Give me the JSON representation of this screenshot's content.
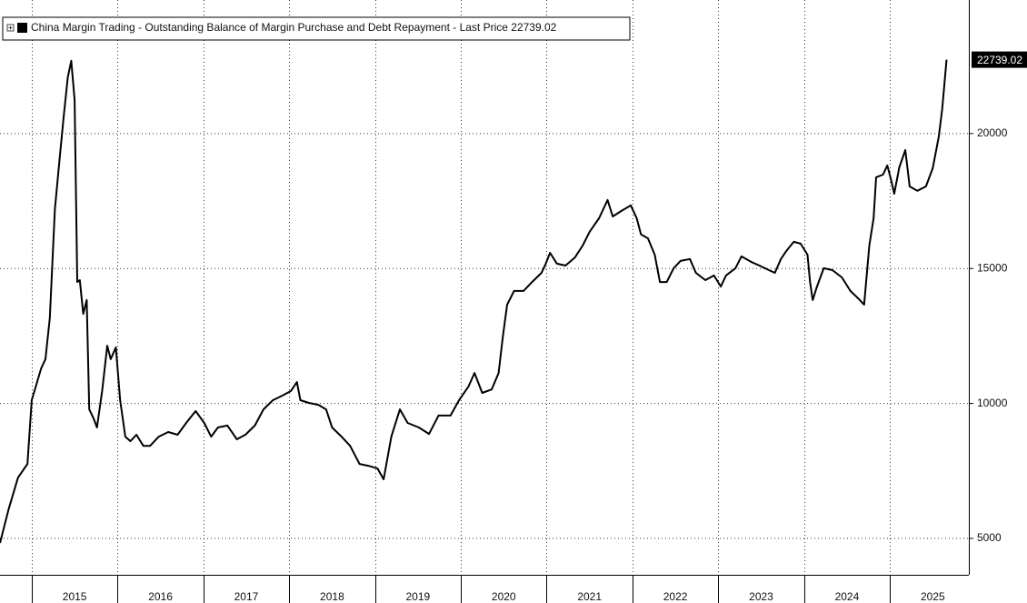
{
  "chart_data": {
    "type": "line",
    "series": [
      {
        "name": "China Margin Trading - Outstanding Balance of Margin Purchase and Debt Repayment - Last Price 22739.02",
        "color": "#000000",
        "x": [
          2014.63,
          2014.73,
          2014.84,
          2014.95,
          2015.0,
          2015.11,
          2015.16,
          2015.21,
          2015.27,
          2015.32,
          2015.37,
          2015.42,
          2015.46,
          2015.5,
          2015.53,
          2015.56,
          2015.6,
          2015.64,
          2015.67,
          2015.72,
          2015.76,
          2015.82,
          2015.88,
          2015.92,
          2015.98,
          2016.03,
          2016.09,
          2016.15,
          2016.22,
          2016.3,
          2016.38,
          2016.48,
          2016.59,
          2016.7,
          2016.8,
          2016.91,
          2017.01,
          2017.09,
          2017.17,
          2017.28,
          2017.39,
          2017.49,
          2017.6,
          2017.7,
          2017.81,
          2017.92,
          2018.02,
          2018.09,
          2018.13,
          2018.23,
          2018.34,
          2018.43,
          2018.5,
          2018.61,
          2018.71,
          2018.82,
          2018.92,
          2019.03,
          2019.1,
          2019.19,
          2019.29,
          2019.38,
          2019.51,
          2019.63,
          2019.74,
          2019.88,
          2019.98,
          2020.09,
          2020.16,
          2020.25,
          2020.36,
          2020.44,
          2020.49,
          2020.54,
          2020.62,
          2020.73,
          2020.83,
          2020.94,
          2020.99,
          2021.04,
          2021.12,
          2021.22,
          2021.33,
          2021.42,
          2021.5,
          2021.61,
          2021.66,
          2021.71,
          2021.77,
          2021.87,
          2021.98,
          2022.05,
          2022.1,
          2022.18,
          2022.26,
          2022.32,
          2022.4,
          2022.48,
          2022.56,
          2022.67,
          2022.74,
          2022.85,
          2022.95,
          2023.03,
          2023.09,
          2023.2,
          2023.27,
          2023.38,
          2023.48,
          2023.59,
          2023.66,
          2023.73,
          2023.8,
          2023.88,
          2023.96,
          2024.04,
          2024.07,
          2024.1,
          2024.15,
          2024.23,
          2024.33,
          2024.44,
          2024.54,
          2024.65,
          2024.7,
          2024.76,
          2024.81,
          2024.84,
          2024.92,
          2024.97,
          2025.02,
          2025.05,
          2025.11,
          2025.18,
          2025.23,
          2025.32,
          2025.42,
          2025.5,
          2025.57,
          2025.61,
          2025.66
        ],
        "values": [
          4830,
          6070,
          7250,
          7760,
          10120,
          11300,
          11640,
          13160,
          17200,
          18890,
          20570,
          22090,
          22700,
          21250,
          14500,
          14570,
          13320,
          13830,
          9780,
          9450,
          9110,
          10460,
          12140,
          11640,
          12080,
          10120,
          8770,
          8600,
          8840,
          8430,
          8430,
          8770,
          8940,
          8840,
          9280,
          9720,
          9280,
          8770,
          9110,
          9180,
          8670,
          8840,
          9180,
          9780,
          10120,
          10290,
          10460,
          10790,
          10120,
          10020,
          9950,
          9780,
          9110,
          8770,
          8430,
          7760,
          7690,
          7590,
          7190,
          8770,
          9780,
          9280,
          9110,
          8870,
          9550,
          9550,
          10120,
          10630,
          11130,
          10390,
          10520,
          11130,
          12480,
          13660,
          14170,
          14170,
          14500,
          14840,
          15180,
          15580,
          15180,
          15110,
          15410,
          15850,
          16360,
          16860,
          17200,
          17540,
          16930,
          17130,
          17340,
          16860,
          16260,
          16120,
          15510,
          14500,
          14500,
          15010,
          15280,
          15350,
          14840,
          14570,
          14740,
          14330,
          14740,
          15010,
          15450,
          15250,
          15110,
          14940,
          14840,
          15350,
          15680,
          15990,
          15920,
          15510,
          14500,
          13830,
          14330,
          15010,
          14940,
          14670,
          14170,
          13830,
          13660,
          15850,
          16860,
          18380,
          18480,
          18820,
          18210,
          17770,
          18750,
          19390,
          18040,
          17880,
          18040,
          18720,
          19900,
          20910,
          22739.02
        ]
      }
    ],
    "xlim": [
      2014.63,
      2025.92
    ],
    "xticks": [
      {
        "value": 2015,
        "label": "2015"
      },
      {
        "value": 2016,
        "label": "2016"
      },
      {
        "value": 2017,
        "label": "2017"
      },
      {
        "value": 2018,
        "label": "2018"
      },
      {
        "value": 2019,
        "label": "2019"
      },
      {
        "value": 2020,
        "label": "2020"
      },
      {
        "value": 2021,
        "label": "2021"
      },
      {
        "value": 2022,
        "label": "2022"
      },
      {
        "value": 2023,
        "label": "2023"
      },
      {
        "value": 2024,
        "label": "2024"
      },
      {
        "value": 2025,
        "label": "2025"
      }
    ],
    "ylim": [
      3650,
      24950
    ],
    "yticks": [
      5000,
      10000,
      15000,
      20000
    ],
    "grid": true
  }
}
